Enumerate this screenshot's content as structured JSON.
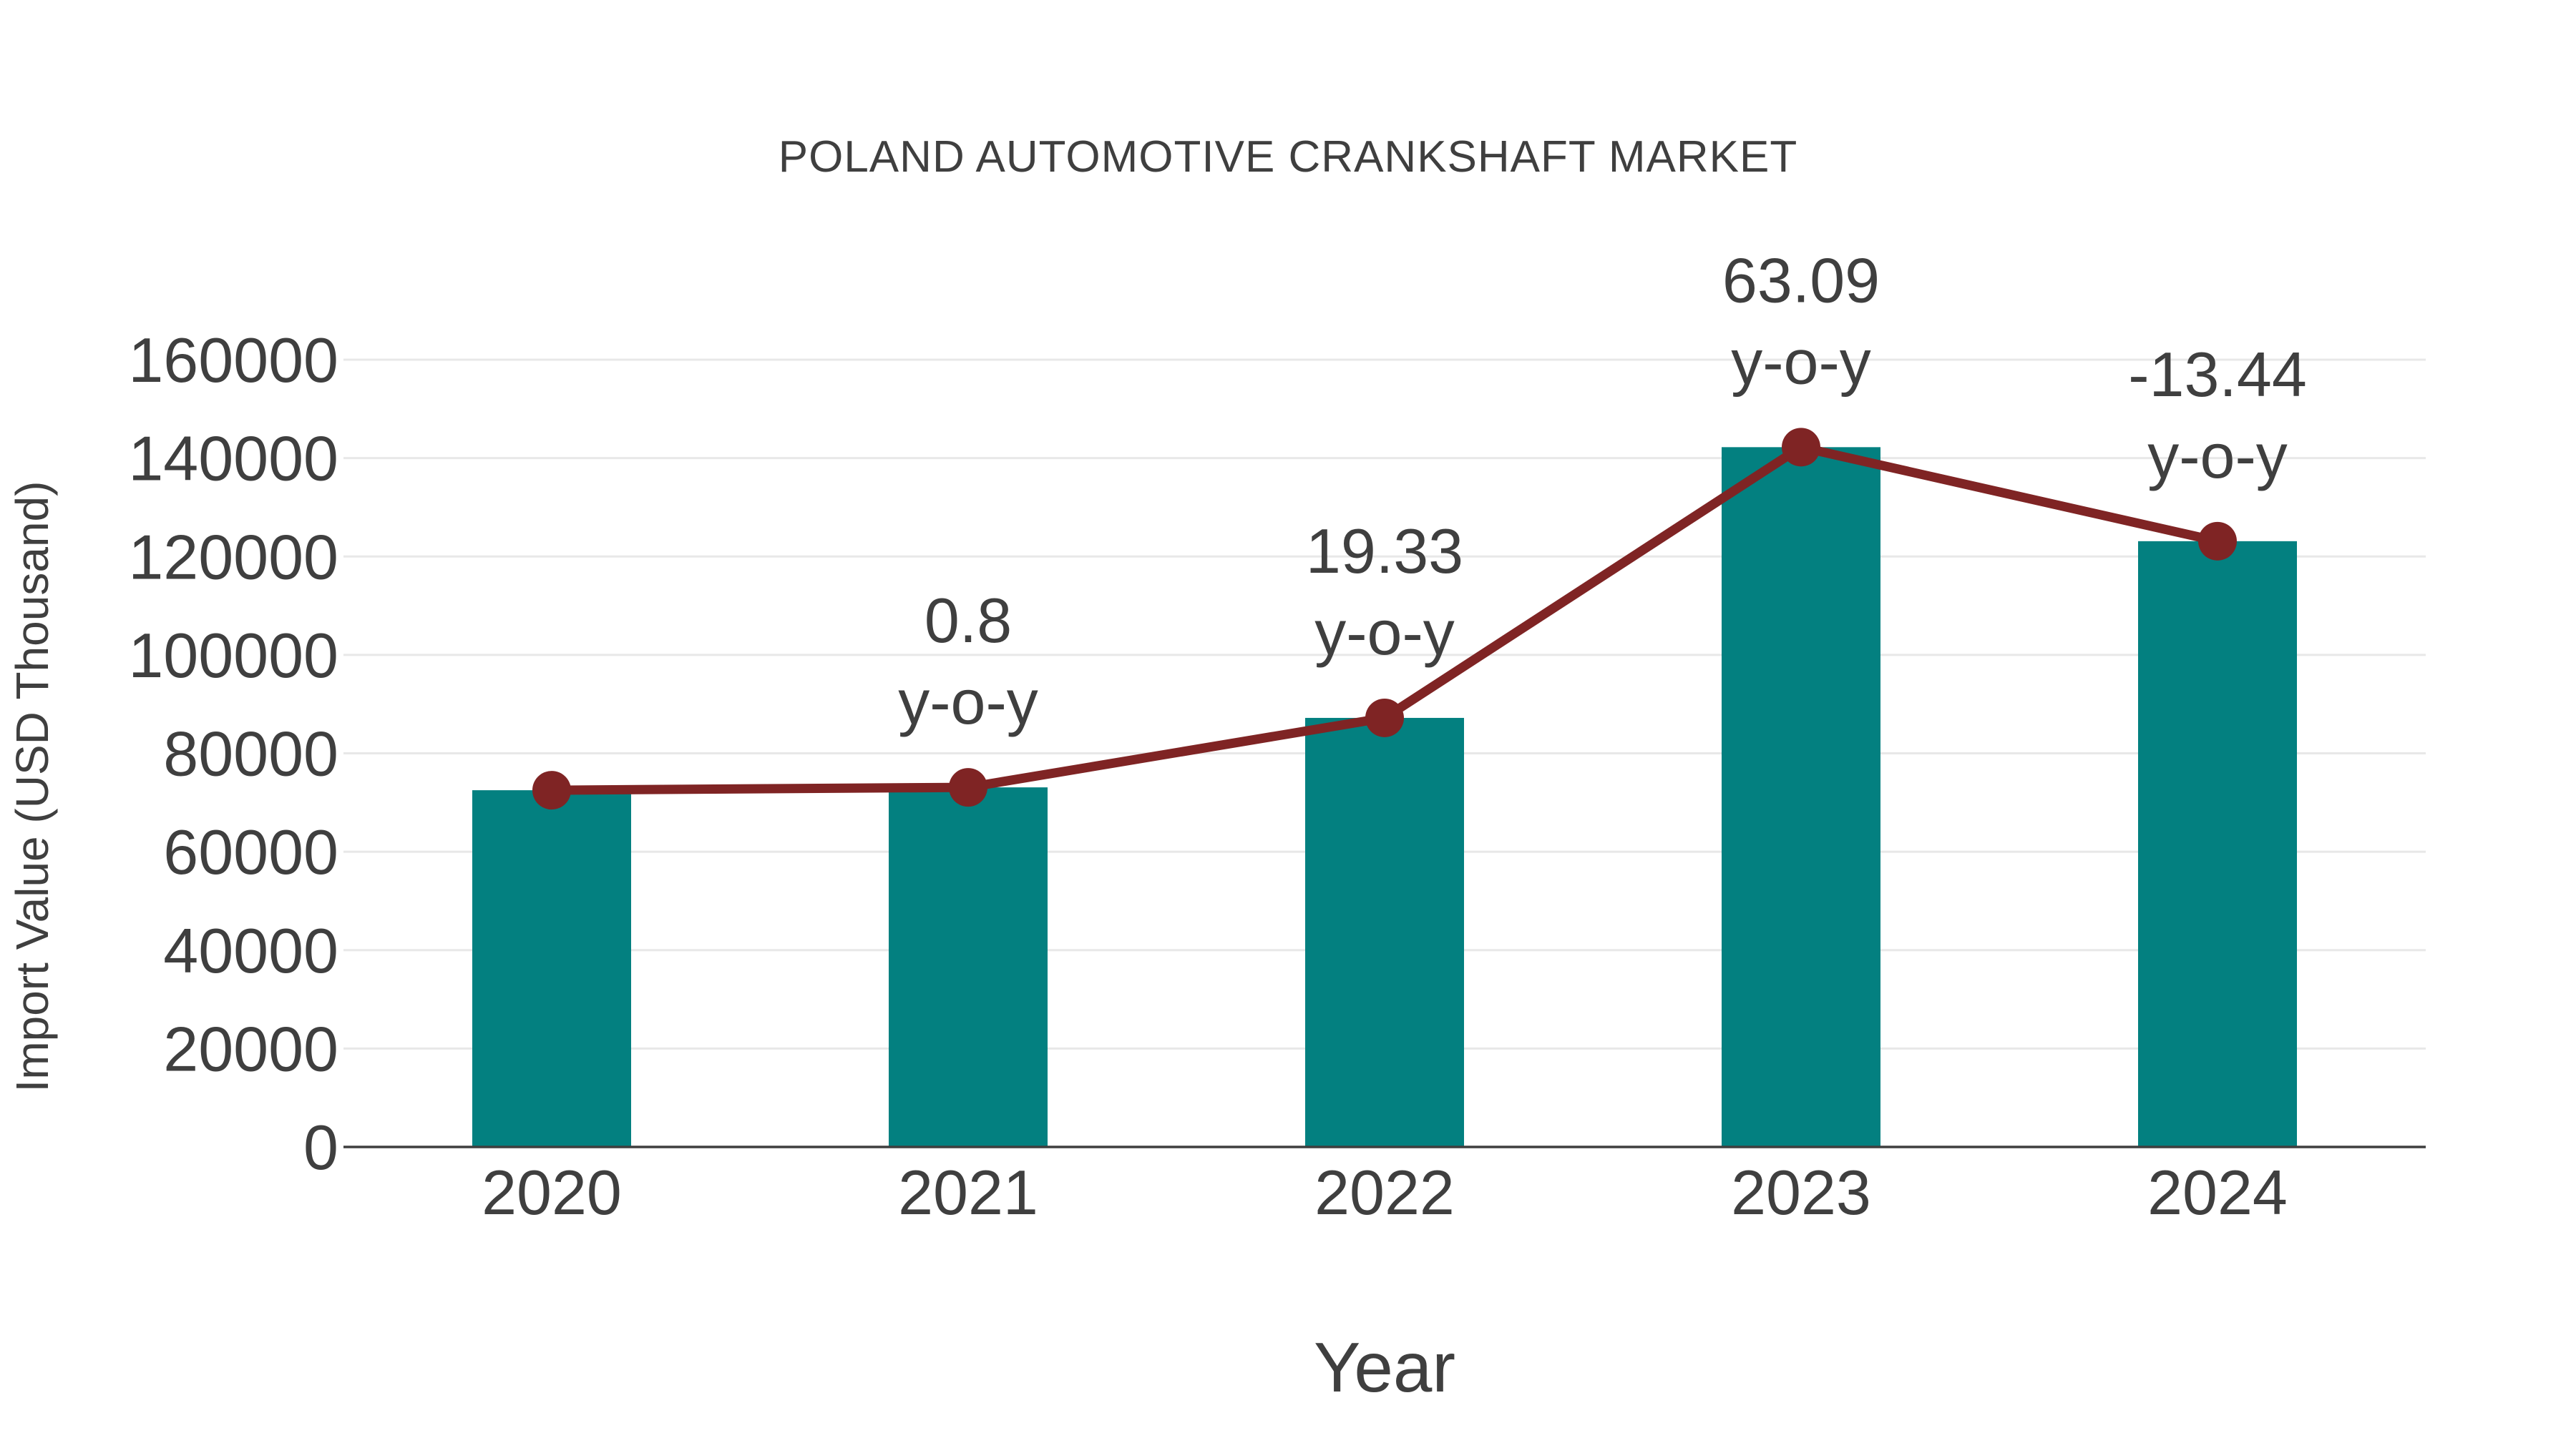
{
  "title": "POLAND AUTOMOTIVE CRANKSHAFT MARKET",
  "axes": {
    "x_title": "Year",
    "y_title": "Import Value (USD Thousand)"
  },
  "colors": {
    "background": "#ffffff",
    "bar_fill": "#038080",
    "line_stroke": "#7f2424",
    "marker_fill": "#7f2424",
    "text": "#3f3f3f",
    "gridline": "#e8e8e8",
    "axis_line": "#3f3f3f"
  },
  "chart_data": {
    "type": "bar",
    "subtype": "bar-with-line-overlay",
    "title": "POLAND AUTOMOTIVE CRANKSHAFT MARKET",
    "xlabel": "Year",
    "ylabel": "Import Value (USD Thousand)",
    "categories": [
      "2020",
      "2021",
      "2022",
      "2023",
      "2024"
    ],
    "series": [
      {
        "name": "Import Value (USD Thousand)",
        "type": "bar",
        "values": [
          72500,
          73080,
          87200,
          142220,
          123110
        ]
      },
      {
        "name": "y-o-y growth (%)",
        "type": "line",
        "values": [
          null,
          0.8,
          19.33,
          63.09,
          -13.44
        ]
      }
    ],
    "annotations": [
      {
        "category": "2021",
        "line1": "0.8",
        "line2": "y-o-y"
      },
      {
        "category": "2022",
        "line1": "19.33",
        "line2": "y-o-y"
      },
      {
        "category": "2023",
        "line1": "63.09",
        "line2": "y-o-y"
      },
      {
        "category": "2024",
        "line1": "-13.44",
        "line2": "y-o-y"
      }
    ],
    "ylim": [
      0,
      160000
    ],
    "yticks": [
      0,
      20000,
      40000,
      60000,
      80000,
      100000,
      120000,
      140000,
      160000
    ],
    "ytick_labels": [
      "0",
      "20000",
      "40000",
      "60000",
      "80000",
      "100000",
      "120000",
      "140000",
      "160000"
    ],
    "grid": true,
    "legend_position": "none"
  }
}
